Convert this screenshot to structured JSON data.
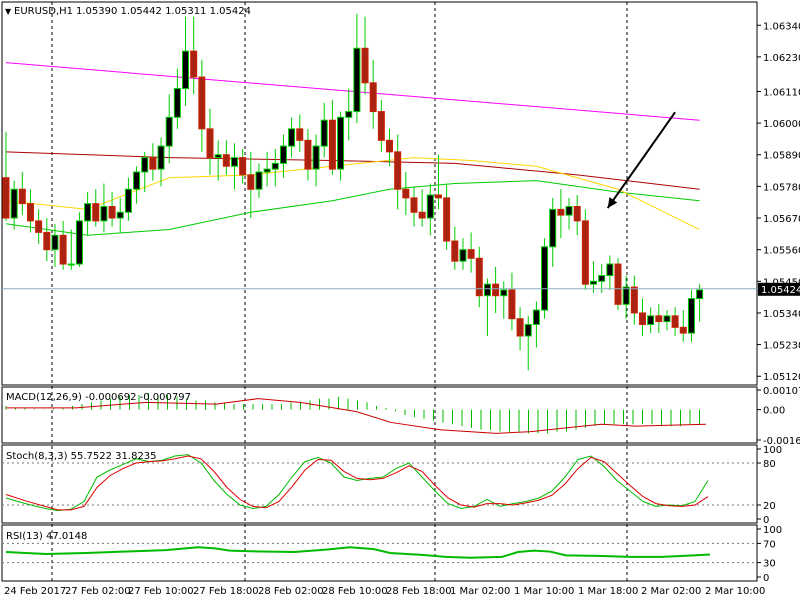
{
  "chart_data": {
    "type": "candlestick",
    "symbol_label": "EURUSD,H1",
    "header_ohlc": "1.05390 1.05442 1.05311 1.05424",
    "current_price_label": "1.05424",
    "current_price": 1.05424,
    "price_axis_ticks": [
      "1.06340",
      "1.06230",
      "1.06110",
      "1.06000",
      "1.05890",
      "1.05780",
      "1.05670",
      "1.05560",
      "1.05450",
      "1.05340",
      "1.05230",
      "1.05120"
    ],
    "time_labels": [
      "24 Feb 2017",
      "27 Feb 02:00",
      "27 Feb 10:00",
      "27 Feb 18:00",
      "28 Feb 02:00",
      "28 Feb 10:00",
      "28 Feb 18:00",
      "1 Mar 02:00",
      "1 Mar 10:00",
      "1 Mar 18:00",
      "2 Mar 02:00",
      "2 Mar 10:00"
    ],
    "candles": [
      [
        1.0581,
        1.0597,
        1.0566,
        1.0567
      ],
      [
        1.0567,
        1.058,
        1.0563,
        1.0577
      ],
      [
        1.0577,
        1.0583,
        1.0568,
        1.0572
      ],
      [
        1.0572,
        1.0577,
        1.0562,
        1.0566
      ],
      [
        1.0566,
        1.057,
        1.0558,
        1.0562
      ],
      [
        1.0562,
        1.0567,
        1.0552,
        1.0556
      ],
      [
        1.0556,
        1.0565,
        1.055,
        1.0561
      ],
      [
        1.0561,
        1.0566,
        1.0549,
        1.0551
      ],
      [
        1.0551,
        1.0563,
        1.0549,
        1.0551
      ],
      [
        1.0551,
        1.0569,
        1.055,
        1.0566
      ],
      [
        1.0566,
        1.0576,
        1.0561,
        1.0572
      ],
      [
        1.0572,
        1.0577,
        1.0564,
        1.0566
      ],
      [
        1.0566,
        1.0579,
        1.0562,
        1.0571
      ],
      [
        1.0571,
        1.0576,
        1.0564,
        1.0567
      ],
      [
        1.0567,
        1.0574,
        1.0562,
        1.0569
      ],
      [
        1.0569,
        1.0581,
        1.0566,
        1.0577
      ],
      [
        1.0577,
        1.0585,
        1.0572,
        1.0583
      ],
      [
        1.0583,
        1.059,
        1.0576,
        1.0588
      ],
      [
        1.0588,
        1.0593,
        1.058,
        1.0584
      ],
      [
        1.0584,
        1.0595,
        1.0578,
        1.0592
      ],
      [
        1.0592,
        1.061,
        1.0586,
        1.0602
      ],
      [
        1.0602,
        1.0619,
        1.0598,
        1.0612
      ],
      [
        1.0612,
        1.0637,
        1.0606,
        1.0625
      ],
      [
        1.0625,
        1.0637,
        1.061,
        1.0616
      ],
      [
        1.0616,
        1.0622,
        1.059,
        1.0598
      ],
      [
        1.0598,
        1.0605,
        1.0582,
        1.0588
      ],
      [
        1.0588,
        1.0594,
        1.058,
        1.0589
      ],
      [
        1.0589,
        1.0594,
        1.0582,
        1.0585
      ],
      [
        1.0585,
        1.0593,
        1.0577,
        1.0588
      ],
      [
        1.0588,
        1.0591,
        1.0579,
        1.0582
      ],
      [
        1.0582,
        1.059,
        1.0567,
        1.0577
      ],
      [
        1.0577,
        1.0586,
        1.0574,
        1.0583
      ],
      [
        1.0583,
        1.059,
        1.0578,
        1.0584
      ],
      [
        1.0584,
        1.0591,
        1.0578,
        1.0586
      ],
      [
        1.0586,
        1.0596,
        1.0581,
        1.0592
      ],
      [
        1.0592,
        1.0602,
        1.0588,
        1.0598
      ],
      [
        1.0598,
        1.0603,
        1.059,
        1.0594
      ],
      [
        1.0594,
        1.0598,
        1.058,
        1.0584
      ],
      [
        1.0584,
        1.0596,
        1.0578,
        1.0592
      ],
      [
        1.0592,
        1.0607,
        1.0588,
        1.0601
      ],
      [
        1.0601,
        1.0608,
        1.0582,
        1.0584
      ],
      [
        1.0584,
        1.0604,
        1.058,
        1.0602
      ],
      [
        1.0602,
        1.0612,
        1.0594,
        1.0604
      ],
      [
        1.0604,
        1.0638,
        1.06,
        1.0626
      ],
      [
        1.0626,
        1.0637,
        1.061,
        1.0614
      ],
      [
        1.0614,
        1.0622,
        1.0598,
        1.0604
      ],
      [
        1.0604,
        1.0608,
        1.059,
        1.0594
      ],
      [
        1.0594,
        1.0598,
        1.0585,
        1.059
      ],
      [
        1.059,
        1.0596,
        1.057,
        1.0577
      ],
      [
        1.0577,
        1.0583,
        1.0568,
        1.0574
      ],
      [
        1.0574,
        1.0578,
        1.0564,
        1.0569
      ],
      [
        1.0569,
        1.0577,
        1.0564,
        1.0567
      ],
      [
        1.0567,
        1.0579,
        1.0561,
        1.0575
      ],
      [
        1.0575,
        1.0589,
        1.057,
        1.0574
      ],
      [
        1.0574,
        1.0579,
        1.0556,
        1.0559
      ],
      [
        1.0559,
        1.0564,
        1.0549,
        1.0552
      ],
      [
        1.0552,
        1.056,
        1.0549,
        1.0556
      ],
      [
        1.0556,
        1.0562,
        1.0548,
        1.0553
      ],
      [
        1.0553,
        1.0557,
        1.0536,
        1.054
      ],
      [
        1.054,
        1.0546,
        1.0526,
        1.0544
      ],
      [
        1.0544,
        1.055,
        1.0534,
        1.054
      ],
      [
        1.054,
        1.0545,
        1.0532,
        1.0542
      ],
      [
        1.0542,
        1.0548,
        1.0528,
        1.0532
      ],
      [
        1.0532,
        1.0536,
        1.0521,
        1.0526
      ],
      [
        1.0526,
        1.0533,
        1.0514,
        1.053
      ],
      [
        1.053,
        1.0538,
        1.0522,
        1.0535
      ],
      [
        1.0535,
        1.056,
        1.0532,
        1.0557
      ],
      [
        1.0557,
        1.0574,
        1.055,
        1.057
      ],
      [
        1.057,
        1.0577,
        1.056,
        1.0568
      ],
      [
        1.0568,
        1.0574,
        1.0563,
        1.0571
      ],
      [
        1.0571,
        1.0575,
        1.0561,
        1.0566
      ],
      [
        1.0566,
        1.057,
        1.0542,
        1.0544
      ],
      [
        1.0544,
        1.0552,
        1.0541,
        1.0545
      ],
      [
        1.0545,
        1.0551,
        1.0541,
        1.0547
      ],
      [
        1.0547,
        1.0554,
        1.0542,
        1.0551
      ],
      [
        1.0551,
        1.0553,
        1.0535,
        1.0537
      ],
      [
        1.0537,
        1.0547,
        1.0532,
        1.0543
      ],
      [
        1.0543,
        1.0547,
        1.053,
        1.0534
      ],
      [
        1.0534,
        1.0539,
        1.0526,
        1.053
      ],
      [
        1.053,
        1.0536,
        1.0527,
        1.0533
      ],
      [
        1.0533,
        1.0537,
        1.0527,
        1.0531
      ],
      [
        1.0531,
        1.0535,
        1.0528,
        1.0533
      ],
      [
        1.0533,
        1.0536,
        1.0526,
        1.0529
      ],
      [
        1.0529,
        1.0535,
        1.0524,
        1.0527
      ],
      [
        1.0527,
        1.0542,
        1.0524,
        1.0539
      ],
      [
        1.0539,
        1.0544,
        1.0531,
        1.0542
      ]
    ],
    "moving_averages": [
      {
        "color": "#ff00ff",
        "values": [
          [
            0,
            1.0621
          ],
          [
            85,
            1.0601
          ]
        ]
      },
      {
        "color": "#aa0000",
        "values": [
          [
            0,
            1.059
          ],
          [
            20,
            1.0588
          ],
          [
            40,
            1.0587
          ],
          [
            55,
            1.0586
          ],
          [
            70,
            1.0582
          ],
          [
            85,
            1.0577
          ]
        ]
      },
      {
        "color": "#00cc00",
        "values": [
          [
            0,
            1.0565
          ],
          [
            10,
            1.0561
          ],
          [
            20,
            1.0563
          ],
          [
            30,
            1.0569
          ],
          [
            40,
            1.0573
          ],
          [
            47,
            1.0577
          ],
          [
            55,
            1.0579
          ],
          [
            65,
            1.058
          ],
          [
            75,
            1.0576
          ],
          [
            85,
            1.0573
          ]
        ]
      },
      {
        "color": "#ffd700",
        "values": [
          [
            0,
            1.0573
          ],
          [
            10,
            1.057
          ],
          [
            20,
            1.0581
          ],
          [
            30,
            1.0582
          ],
          [
            40,
            1.0585
          ],
          [
            50,
            1.0588
          ],
          [
            57,
            1.0587
          ],
          [
            65,
            1.0585
          ],
          [
            75,
            1.0577
          ],
          [
            85,
            1.0563
          ]
        ]
      }
    ],
    "annotation_arrow": {
      "from_index": 82,
      "from_price": 1.0601,
      "to_index": 73,
      "to_price": 1.0567,
      "color": "#000000"
    },
    "macd": {
      "label": "MACD(12,26,9) -0.000692 -0.000797",
      "axis_ticks": [
        "0.001074",
        "0.00",
        "-0.00166"
      ],
      "histogram": [
        0.0002,
        0.0001,
        0.0001,
        5e-05,
        3e-05,
        6e-05,
        0.0001,
        0.0002,
        0.0003,
        0.0004,
        0.0005,
        0.0006,
        0.0007,
        0.0008,
        0.0008,
        0.0009,
        0.0008,
        0.0008,
        0.0007,
        0.0006,
        0.0005,
        0.0005,
        0.0004,
        0.0004,
        0.0003,
        0.0003,
        0.0003,
        0.0003,
        0.0003,
        0.0003,
        0.0004,
        0.0004,
        0.0005,
        0.0006,
        0.0006,
        0.0007,
        0.0006,
        0.0005,
        0.0004,
        0.0002,
        0.0001,
        -0.0001,
        -0.0003,
        -0.0004,
        -0.0005,
        -0.0006,
        -0.0007,
        -0.0008,
        -0.0009,
        -0.001,
        -0.0011,
        -0.0011,
        -0.0012,
        -0.0012,
        -0.0012,
        -0.0013,
        -0.0013,
        -0.0013,
        -0.0012,
        -0.0012,
        -0.0011,
        -0.001,
        -0.0009,
        -0.0008,
        -0.0008,
        -0.0008,
        -0.0008,
        -0.0008,
        -0.0008,
        -0.0009,
        -0.0009,
        -0.0009,
        -0.0008,
        -0.0008
      ],
      "signal": [
        [
          0,
          0.0001
        ],
        [
          10,
          0.0001
        ],
        [
          20,
          0.0004
        ],
        [
          30,
          0.0003
        ],
        [
          36,
          0.0006
        ],
        [
          42,
          0.0004
        ],
        [
          50,
          -0.0001
        ],
        [
          55,
          -0.0007
        ],
        [
          62,
          -0.0011
        ],
        [
          70,
          -0.0013
        ],
        [
          75,
          -0.0012
        ],
        [
          80,
          -0.001
        ],
        [
          85,
          -0.0008
        ],
        [
          90,
          -0.0009
        ],
        [
          100,
          -0.0008
        ]
      ]
    },
    "stoch": {
      "label": "Stoch(8,3,3) 55.7522 31.8235",
      "axis_ticks": [
        "100",
        "80",
        "20",
        "0"
      ],
      "levels": [
        80,
        20
      ],
      "main": [
        [
          0,
          30
        ],
        [
          3,
          22
        ],
        [
          6,
          15
        ],
        [
          8,
          12
        ],
        [
          10,
          14
        ],
        [
          12,
          25
        ],
        [
          14,
          60
        ],
        [
          16,
          70
        ],
        [
          18,
          78
        ],
        [
          20,
          86
        ],
        [
          22,
          82
        ],
        [
          24,
          84
        ],
        [
          26,
          90
        ],
        [
          28,
          92
        ],
        [
          30,
          80
        ],
        [
          32,
          55
        ],
        [
          34,
          35
        ],
        [
          36,
          20
        ],
        [
          38,
          15
        ],
        [
          40,
          18
        ],
        [
          42,
          35
        ],
        [
          44,
          60
        ],
        [
          46,
          82
        ],
        [
          48,
          88
        ],
        [
          50,
          80
        ],
        [
          52,
          60
        ],
        [
          54,
          55
        ],
        [
          56,
          58
        ],
        [
          58,
          60
        ],
        [
          60,
          72
        ],
        [
          62,
          80
        ],
        [
          64,
          60
        ],
        [
          66,
          40
        ],
        [
          68,
          22
        ],
        [
          70,
          15
        ],
        [
          72,
          18
        ],
        [
          74,
          28
        ],
        [
          76,
          18
        ],
        [
          78,
          22
        ],
        [
          80,
          25
        ],
        [
          82,
          30
        ],
        [
          84,
          40
        ],
        [
          86,
          60
        ],
        [
          88,
          85
        ],
        [
          90,
          90
        ],
        [
          92,
          75
        ],
        [
          94,
          55
        ],
        [
          96,
          40
        ],
        [
          98,
          25
        ],
        [
          100,
          18
        ],
        [
          102,
          20
        ],
        [
          104,
          19
        ],
        [
          106,
          25
        ],
        [
          108,
          55
        ]
      ],
      "signal": [
        [
          0,
          35
        ],
        [
          3,
          26
        ],
        [
          6,
          18
        ],
        [
          8,
          13
        ],
        [
          10,
          13
        ],
        [
          12,
          18
        ],
        [
          14,
          45
        ],
        [
          16,
          62
        ],
        [
          18,
          72
        ],
        [
          20,
          80
        ],
        [
          22,
          82
        ],
        [
          24,
          83
        ],
        [
          26,
          86
        ],
        [
          28,
          90
        ],
        [
          30,
          86
        ],
        [
          32,
          68
        ],
        [
          34,
          45
        ],
        [
          36,
          28
        ],
        [
          38,
          18
        ],
        [
          40,
          16
        ],
        [
          42,
          25
        ],
        [
          44,
          46
        ],
        [
          46,
          70
        ],
        [
          48,
          85
        ],
        [
          50,
          84
        ],
        [
          52,
          68
        ],
        [
          54,
          58
        ],
        [
          56,
          56
        ],
        [
          58,
          58
        ],
        [
          60,
          66
        ],
        [
          62,
          76
        ],
        [
          64,
          68
        ],
        [
          66,
          48
        ],
        [
          68,
          30
        ],
        [
          70,
          20
        ],
        [
          72,
          17
        ],
        [
          74,
          22
        ],
        [
          76,
          22
        ],
        [
          78,
          20
        ],
        [
          80,
          23
        ],
        [
          82,
          27
        ],
        [
          84,
          34
        ],
        [
          86,
          50
        ],
        [
          88,
          72
        ],
        [
          90,
          88
        ],
        [
          92,
          82
        ],
        [
          94,
          65
        ],
        [
          96,
          48
        ],
        [
          98,
          32
        ],
        [
          100,
          22
        ],
        [
          102,
          19
        ],
        [
          104,
          18
        ],
        [
          106,
          20
        ],
        [
          108,
          32
        ]
      ]
    },
    "rsi": {
      "label": "RSI(13) 47.0148",
      "axis_ticks": [
        "100",
        "70",
        "30",
        "0"
      ],
      "levels": [
        70,
        30
      ],
      "values": [
        [
          0,
          52
        ],
        [
          5,
          48
        ],
        [
          10,
          50
        ],
        [
          15,
          53
        ],
        [
          20,
          56
        ],
        [
          24,
          62
        ],
        [
          26,
          60
        ],
        [
          28,
          55
        ],
        [
          32,
          53
        ],
        [
          36,
          52
        ],
        [
          40,
          57
        ],
        [
          43,
          62
        ],
        [
          46,
          58
        ],
        [
          48,
          50
        ],
        [
          52,
          46
        ],
        [
          55,
          42
        ],
        [
          58,
          40
        ],
        [
          62,
          42
        ],
        [
          64,
          52
        ],
        [
          66,
          55
        ],
        [
          68,
          53
        ],
        [
          70,
          45
        ],
        [
          74,
          44
        ],
        [
          78,
          42
        ],
        [
          82,
          42
        ],
        [
          86,
          45
        ],
        [
          88,
          47
        ]
      ]
    }
  }
}
